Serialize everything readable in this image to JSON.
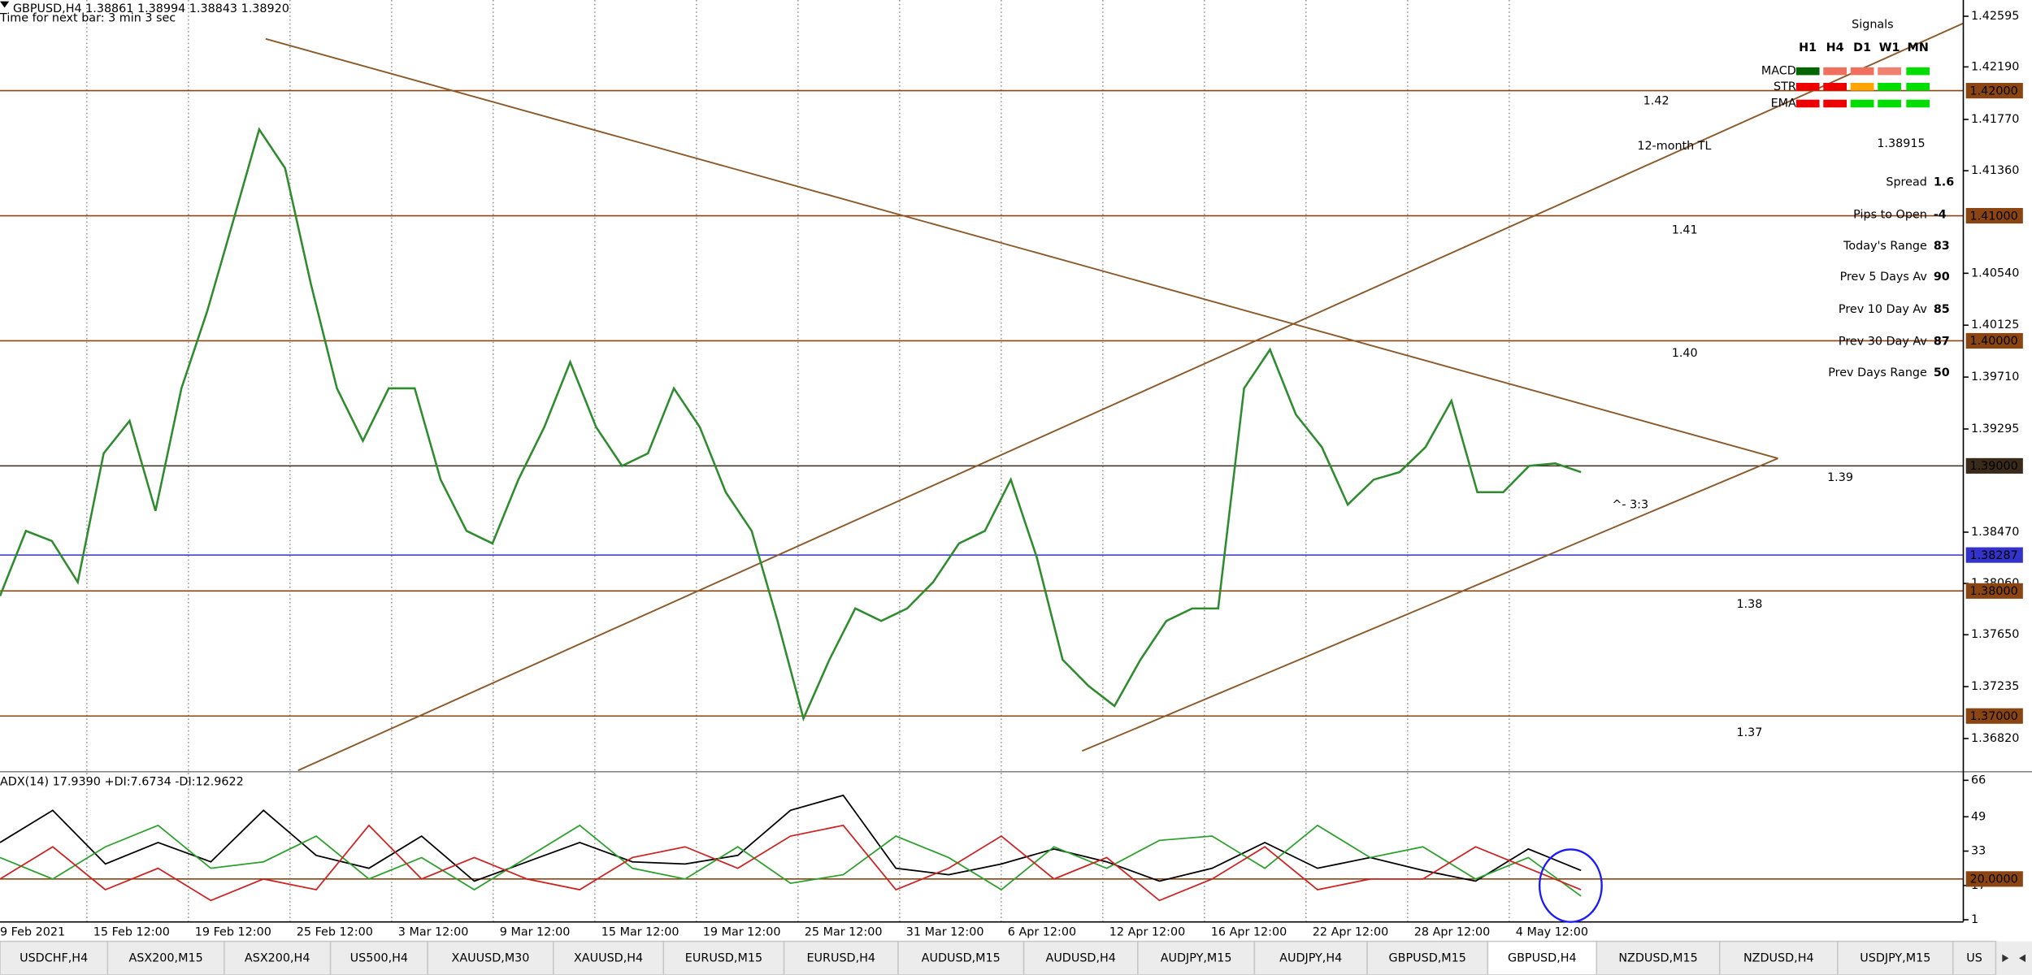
{
  "header": {
    "symbol_line": "GBPUSD,H4  1.38861 1.38994 1.38843 1.38920",
    "timer": "Time for next bar: 3 min 3 sec"
  },
  "chart_data": [
    {
      "type": "line",
      "ylim": [
        1.36565,
        1.42725
      ],
      "yticks": [
        1.42595,
        {
          "value": 1.4219,
          "label": "1.42190"
        },
        {
          "value": 1.4177,
          "label": "1.41770"
        },
        {
          "value": 1.4136,
          "label": "1.41360"
        },
        {
          "value": 1.4054,
          "label": "1.40540"
        },
        1.40125,
        {
          "value": 1.3971,
          "label": "1.39710"
        },
        1.39295,
        {
          "value": 1.3847,
          "label": "1.38470"
        },
        {
          "value": 1.3806,
          "label": "1.38060"
        },
        {
          "value": 1.3765,
          "label": "1.37650"
        },
        1.37235,
        {
          "value": 1.3682,
          "label": "1.36820"
        }
      ],
      "levels": [
        {
          "value": 1.42,
          "label": "1.42000",
          "color": "#8b4513"
        },
        {
          "value": 1.41,
          "label": "1.41000",
          "color": "#8b4513"
        },
        {
          "value": 1.4,
          "label": "1.40000",
          "color": "#8b4513"
        },
        {
          "value": 1.39,
          "label": "1.39000",
          "color": "#3a2a1a"
        },
        {
          "value": 1.38287,
          "label": "1.38287",
          "color": "#3333cc"
        },
        {
          "value": 1.38,
          "label": "1.38000",
          "color": "#8b4513"
        },
        {
          "value": 1.37,
          "label": "1.37000",
          "color": "#8b4513"
        }
      ],
      "series": [
        {
          "color": "#2e8b2e",
          "values": [
            1.3796,
            1.3848,
            1.384,
            1.3807,
            1.391,
            1.3936,
            1.3864,
            1.3962,
            1.4024,
            1.4096,
            1.4169,
            1.4138,
            1.4045,
            1.3962,
            1.392,
            1.3962,
            1.3962,
            1.3889,
            1.3848,
            1.3838,
            1.3889,
            1.3931,
            1.3983,
            1.3931,
            1.39,
            1.391,
            1.3962,
            1.3931,
            1.3879,
            1.3848,
            1.3776,
            1.3698,
            1.3745,
            1.3786,
            1.3776,
            1.3786,
            1.3807,
            1.3838,
            1.3848,
            1.3889,
            1.3827,
            1.3745,
            1.3724,
            1.3708,
            1.3745,
            1.3776,
            1.3786,
            1.3786,
            1.3962,
            1.3993,
            1.3941,
            1.3915,
            1.3869,
            1.3889,
            1.3895,
            1.3915,
            1.3952,
            1.3879,
            1.3879,
            1.39,
            1.3902,
            1.3895
          ]
        }
      ],
      "xtick_labels": [
        "9 Feb 2021",
        "15 Feb 12:00",
        "19 Feb 12:00",
        "25 Feb 12:00",
        "3 Mar 12:00",
        "9 Mar 12:00",
        "15 Mar 12:00",
        "19 Mar 12:00",
        "25 Mar 12:00",
        "31 Mar 12:00",
        "6 Apr 12:00",
        "12 Apr 12:00",
        "16 Apr 12:00",
        "22 Apr 12:00",
        "28 Apr 12:00",
        "4 May 12:00"
      ],
      "annotations": [
        {
          "text": "1.42",
          "color": "#8b5a2b"
        },
        {
          "text": "12-month TL",
          "color": "#8b5a2b"
        },
        {
          "text": "1.41",
          "color": "#8b5a2b"
        },
        {
          "text": "1.40",
          "color": "#8b5a2b"
        },
        {
          "text": "1.39",
          "color": "#8b5a2b"
        },
        {
          "text": "1.38",
          "color": "#8b5a2b"
        },
        {
          "text": "1.37",
          "color": "#8b5a2b"
        },
        {
          "text": "^- 3:3",
          "color": "#e02020"
        }
      ]
    },
    {
      "type": "line",
      "title": "ADX(14) 17.9390 +DI:7.6734 -DI:12.9622",
      "ylim": [
        0,
        69.4
      ],
      "yticks": [
        66,
        49,
        33,
        17,
        1
      ],
      "levels": [
        {
          "value": 20,
          "label": "20.0000",
          "color": "#8b4513"
        }
      ],
      "series": [
        {
          "color": "#000000",
          "values": [
            37,
            52,
            27,
            37,
            28,
            52,
            31,
            25,
            40,
            19,
            28,
            37,
            28,
            27,
            31,
            52,
            59,
            25,
            22,
            27,
            34,
            28,
            19,
            25,
            37,
            25,
            30,
            24,
            19,
            34,
            24
          ]
        },
        {
          "color": "#2ca02c",
          "values": [
            30,
            20,
            35,
            45,
            25,
            28,
            40,
            20,
            30,
            15,
            30,
            45,
            25,
            20,
            35,
            18,
            22,
            40,
            30,
            15,
            35,
            25,
            38,
            40,
            25,
            45,
            30,
            35,
            20,
            30,
            12
          ]
        },
        {
          "color": "#cc2222",
          "values": [
            20,
            35,
            15,
            25,
            10,
            20,
            15,
            45,
            20,
            30,
            20,
            15,
            30,
            35,
            25,
            40,
            45,
            15,
            25,
            40,
            20,
            30,
            10,
            20,
            35,
            15,
            20,
            20,
            35,
            25,
            15
          ]
        }
      ]
    }
  ],
  "signals": {
    "title": "Signals",
    "columns": [
      "H1",
      "H4",
      "D1",
      "W1",
      "MN"
    ],
    "rows": [
      {
        "label": "MACD",
        "colors": [
          "#006400",
          "#f07060",
          "#f07060",
          "#f08070",
          "#00dd00"
        ]
      },
      {
        "label": "STR",
        "colors": [
          "#ee0000",
          "#ee0000",
          "#ffa500",
          "#00dd00",
          "#00dd00"
        ]
      },
      {
        "label": "EMA",
        "colors": [
          "#ee0000",
          "#ee0000",
          "#00dd00",
          "#00dd00",
          "#00dd00"
        ]
      }
    ]
  },
  "price": 1.38915,
  "stats": [
    {
      "label": "Spread",
      "value": 1.6,
      "color": "#ff8c00"
    },
    {
      "label": "Pips to Open",
      "value": -4,
      "color": "#ff8c00"
    },
    {
      "label": "Today's Range",
      "value": 83,
      "color": "#008000"
    },
    {
      "label": "Prev 5 Days Av",
      "value": 90,
      "color": "#008000"
    },
    {
      "label": "Prev 10 Day Av",
      "value": 85,
      "color": "#008000"
    },
    {
      "label": "Prev 30 Day Av",
      "value": 87,
      "color": "#008000"
    },
    {
      "label": "Prev Days Range",
      "value": 50,
      "color": "#008000"
    }
  ],
  "tabs": [
    "USDCHF,H4",
    "ASX200,M15",
    "ASX200,H4",
    "US500,H4",
    "XAUUSD,M30",
    "XAUUSD,H4",
    "EURUSD,M15",
    "EURUSD,H4",
    "AUDUSD,M15",
    "AUDUSD,H4",
    "AUDJPY,M15",
    "AUDJPY,H4",
    "GBPUSD,M15",
    "GBPUSD,H4",
    "NZDUSD,M15",
    "NZDUSD,H4",
    "USDJPY,M15",
    "US"
  ],
  "active_tab": 13
}
